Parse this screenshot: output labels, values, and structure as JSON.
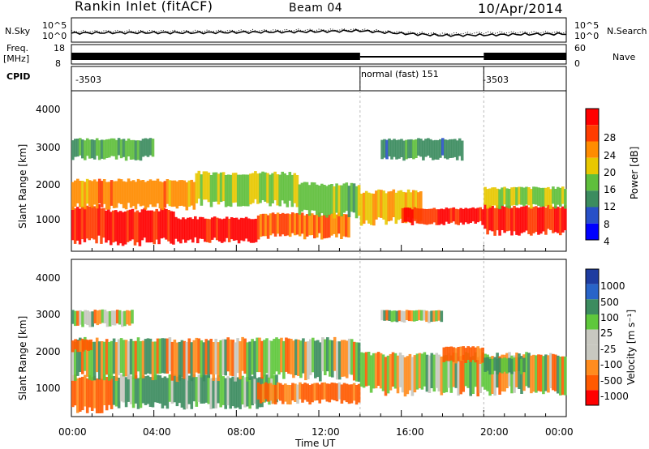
{
  "header": {
    "station": "Rankin Inlet (fitACF)",
    "beam": "Beam 04",
    "date": "10/Apr/2014"
  },
  "noise_panel": {
    "left_label": "N.Sky",
    "left_ticks": [
      "10^5",
      "10^0"
    ],
    "right_label": "N.Search",
    "right_ticks": [
      "10^5",
      "10^0"
    ]
  },
  "freq_panel": {
    "left_label_top": "Freq.",
    "left_label_unit": "[MHz]",
    "left_ticks": [
      "18",
      "8"
    ],
    "right_label": "Nave",
    "right_ticks": [
      "60",
      "0"
    ]
  },
  "cpid_panel": {
    "label": "CPID",
    "segments": [
      {
        "label": "-3503",
        "start_hour": 0,
        "end_hour": 14
      },
      {
        "label": "normal (fast) 151",
        "start_hour": 14,
        "end_hour": 20
      },
      {
        "label": "-3503",
        "start_hour": 20,
        "end_hour": 24
      }
    ]
  },
  "power_colorbar": {
    "label": "Power [dB]",
    "ticks": [
      "28",
      "24",
      "20",
      "16",
      "12",
      "8",
      "4"
    ],
    "colors": [
      "#ff0000",
      "#ff3c00",
      "#ff8c00",
      "#e8c800",
      "#5fbf3c",
      "#3c8c5f",
      "#2850c8",
      "#0000ff"
    ]
  },
  "velocity_colorbar": {
    "label": "Velocity [m s⁻¹]",
    "ticks": [
      "1000",
      "500",
      "100",
      "25",
      "-25",
      "-100",
      "-500",
      "-1000"
    ],
    "colors": [
      "#1e3ca0",
      "#2864c8",
      "#3c8c5f",
      "#5fc83c",
      "#c8c8c0",
      "#c8c8c0",
      "#ff8c1e",
      "#ff5a00",
      "#ff0000"
    ]
  },
  "axes": {
    "ylabel": "Slant Range [km]",
    "yticks": [
      "4000",
      "3000",
      "2000",
      "1000"
    ],
    "xlabel": "Time UT",
    "xticks": [
      "00:00",
      "04:00",
      "08:00",
      "12:00",
      "16:00",
      "20:00",
      "00:00"
    ]
  },
  "chart_data": [
    {
      "type": "heatmap",
      "name": "Power",
      "x_unit": "hours UT",
      "xlim": [
        0,
        24
      ],
      "ylim": [
        300,
        4600
      ],
      "ylabel": "Slant Range [km]",
      "zlabel": "Power [dB]",
      "zlim": [
        0,
        30
      ],
      "bands": [
        {
          "t0": 0,
          "t1": 1.5,
          "r0": 600,
          "r1": 1500,
          "z": 26
        },
        {
          "t0": 1.5,
          "t1": 5,
          "r0": 550,
          "r1": 1400,
          "z": 27
        },
        {
          "t0": 5,
          "t1": 9,
          "r0": 600,
          "r1": 1200,
          "z": 28
        },
        {
          "t0": 9,
          "t1": 13.5,
          "r0": 700,
          "r1": 1300,
          "z": 22
        },
        {
          "t0": 0,
          "t1": 6,
          "r0": 1500,
          "r1": 2200,
          "z": 20
        },
        {
          "t0": 6,
          "t1": 11,
          "r0": 1600,
          "r1": 2400,
          "z": 14
        },
        {
          "t0": 11,
          "t1": 14,
          "r0": 1300,
          "r1": 2100,
          "z": 12
        },
        {
          "t0": 14,
          "t1": 17,
          "r0": 1100,
          "r1": 1900,
          "z": 18
        },
        {
          "t0": 16,
          "t1": 20,
          "r0": 1050,
          "r1": 1450,
          "z": 26
        },
        {
          "t0": 20,
          "t1": 24,
          "r0": 800,
          "r1": 1500,
          "z": 27
        },
        {
          "t0": 20,
          "t1": 24,
          "r0": 1500,
          "r1": 2000,
          "z": 14
        },
        {
          "t0": 15,
          "t1": 19,
          "r0": 2800,
          "r1": 3300,
          "z": 8
        },
        {
          "t0": 0,
          "t1": 4,
          "r0": 2800,
          "r1": 3300,
          "z": 10
        }
      ]
    },
    {
      "type": "heatmap",
      "name": "Velocity",
      "x_unit": "hours UT",
      "xlim": [
        0,
        24
      ],
      "ylim": [
        300,
        4600
      ],
      "ylabel": "Slant Range [km]",
      "zlabel": "Velocity [m s⁻¹]",
      "zlim": [
        -1000,
        1000
      ],
      "bands": [
        {
          "t0": 0,
          "t1": 2,
          "r0": 500,
          "r1": 1400,
          "z": -200
        },
        {
          "t0": 2,
          "t1": 10,
          "r0": 600,
          "r1": 1400,
          "z": 150
        },
        {
          "t0": 9,
          "t1": 14,
          "r0": 700,
          "r1": 1200,
          "z": -150
        },
        {
          "t0": 0,
          "t1": 14,
          "r0": 1400,
          "r1": 2400,
          "z": 0
        },
        {
          "t0": 14,
          "t1": 24,
          "r0": 1000,
          "r1": 2000,
          "z": 0
        },
        {
          "t0": 18,
          "t1": 20,
          "r0": 1800,
          "r1": 2200,
          "z": -200
        },
        {
          "t0": 20,
          "t1": 22,
          "r0": 1500,
          "r1": 1900,
          "z": 80
        },
        {
          "t0": 0,
          "t1": 1,
          "r0": 2100,
          "r1": 2400,
          "z": -200
        },
        {
          "t0": 0,
          "t1": 3,
          "r0": 2800,
          "r1": 3200,
          "z": 0
        },
        {
          "t0": 15,
          "t1": 18,
          "r0": 2900,
          "r1": 3200,
          "z": 0
        }
      ]
    },
    {
      "type": "line",
      "name": "N.Sky",
      "x_unit": "hours UT",
      "x": [
        0,
        2,
        4,
        6,
        8,
        10,
        12,
        14,
        16,
        18,
        20,
        22,
        24
      ],
      "y_log10": [
        1.5,
        1.6,
        1.6,
        1.6,
        1.7,
        1.8,
        1.9,
        2.1,
        1.4,
        0.9,
        1.0,
        1.2,
        1.3
      ]
    },
    {
      "type": "line",
      "name": "N.Search",
      "x_unit": "hours UT",
      "x": [
        0,
        2,
        4,
        6,
        8,
        10,
        12,
        14,
        16,
        18,
        20,
        22,
        24
      ],
      "y_log10": [
        1.9,
        2.0,
        2.0,
        2.0,
        2.1,
        2.2,
        2.3,
        2.4,
        1.7,
        1.3,
        1.6,
        1.7,
        1.7
      ]
    }
  ]
}
